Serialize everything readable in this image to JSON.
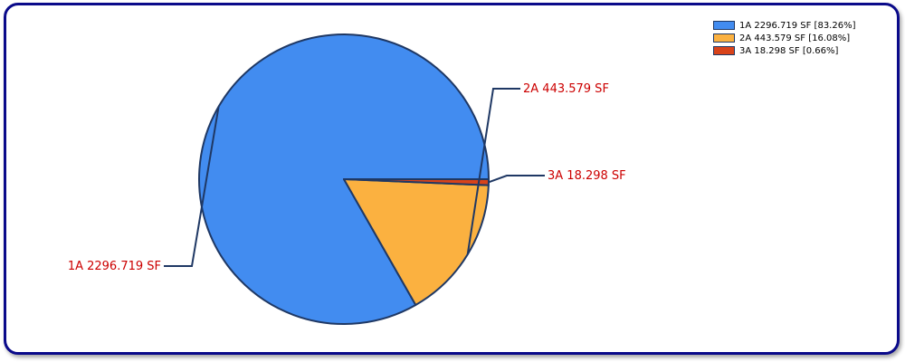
{
  "chart_data": {
    "type": "pie",
    "title": "",
    "slices": [
      {
        "name": "1A",
        "value": 2296.719,
        "unit": "SF",
        "percent": 83.26,
        "color": "#428cf0",
        "label": "1A 2296.719 SF",
        "legend": "1A 2296.719 SF [83.26%]"
      },
      {
        "name": "2A",
        "value": 443.579,
        "unit": "SF",
        "percent": 16.08,
        "color": "#fbb140",
        "label": "2A 443.579 SF",
        "legend": "2A 443.579 SF [16.08%]"
      },
      {
        "name": "3A",
        "value": 18.298,
        "unit": "SF",
        "percent": 0.66,
        "color": "#d8431a",
        "label": "3A 18.298 SF",
        "legend": "3A 18.298 SF [0.66%]"
      }
    ],
    "start_angle_deg": 0,
    "direction": "counterclockwise",
    "legend_position": "top-right",
    "label_color": "#cc0000",
    "outline_color": "#1f3864"
  }
}
